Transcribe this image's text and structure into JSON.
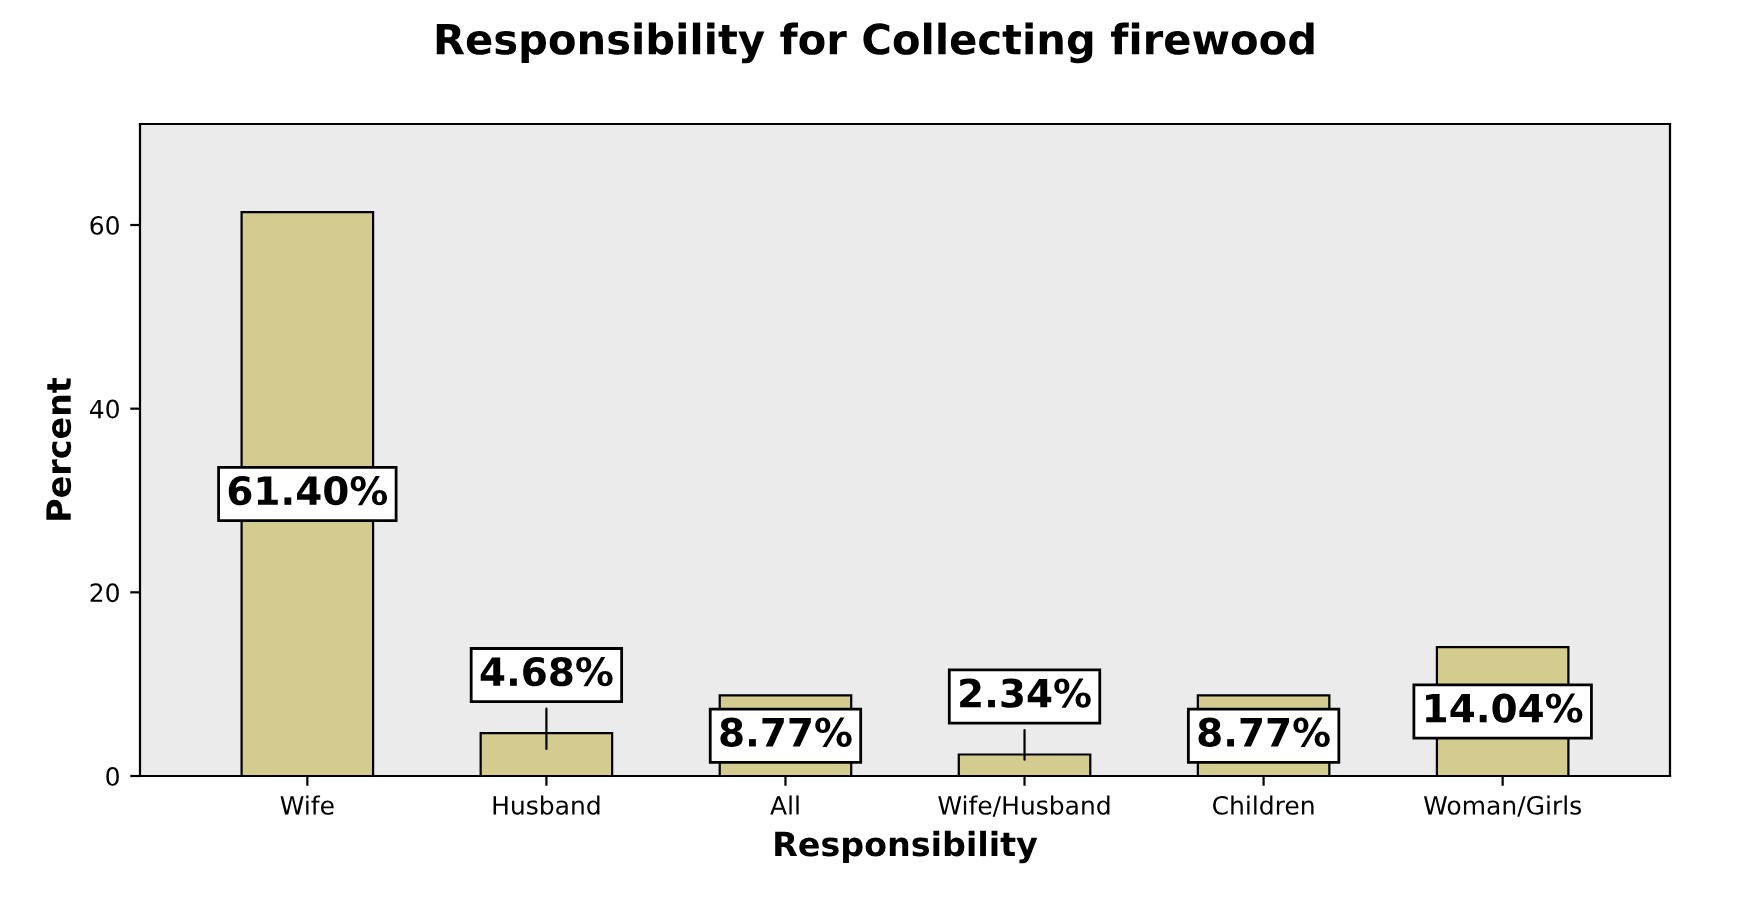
{
  "chart_data": {
    "type": "bar",
    "title": "Responsibility for Collecting firewood",
    "xlabel": "Responsibility",
    "ylabel": "Percent",
    "categories": [
      "Wife",
      "Husband",
      "All",
      "Wife/Husband",
      "Children",
      "Woman/Girls"
    ],
    "values": [
      61.4,
      4.68,
      8.77,
      2.34,
      8.77,
      14.04
    ],
    "value_labels": [
      "61.40%",
      "4.68%",
      "8.77%",
      "2.34%",
      "8.77%",
      "14.04%"
    ],
    "color": "#d4cc8e",
    "ylim": [
      0,
      71
    ],
    "yticks": [
      0,
      20,
      40,
      60
    ],
    "grid": false,
    "legend": false
  }
}
